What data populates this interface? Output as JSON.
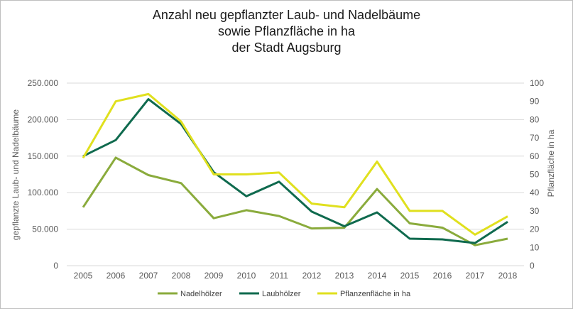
{
  "chart_data": {
    "type": "line",
    "title_lines": [
      "Anzahl neu gepflanzter Laub- und Nadelbäume",
      "sowie Pflanzfläche in ha",
      "der Stadt Augsburg"
    ],
    "categories": [
      "2005",
      "2006",
      "2007",
      "2008",
      "2009",
      "2010",
      "2011",
      "2012",
      "2013",
      "2014",
      "2015",
      "2016",
      "2017",
      "2018"
    ],
    "ylabel_left": "gepflanzte Laub- und Nadelbäume",
    "ylabel_right": "Pflanzfläche in ha",
    "ylim_left": [
      0,
      250000
    ],
    "ylim_right": [
      0,
      100
    ],
    "yticks_left": [
      "0",
      "50.000",
      "100.000",
      "150.000",
      "200.000",
      "250.000"
    ],
    "yticks_right": [
      "0",
      "10",
      "20",
      "30",
      "40",
      "50",
      "60",
      "70",
      "80",
      "90",
      "100"
    ],
    "grid": true,
    "legend_position": "bottom",
    "series": [
      {
        "name": "Nadelhölzer",
        "axis": "left",
        "color": "#8aab3c",
        "values": [
          80000,
          148000,
          124000,
          113000,
          65000,
          76000,
          68000,
          51000,
          52000,
          105000,
          58000,
          52000,
          28000,
          37000
        ]
      },
      {
        "name": "Laubhölzer",
        "axis": "left",
        "color": "#0f6a4e",
        "values": [
          150000,
          172000,
          228000,
          194000,
          128000,
          95000,
          115000,
          74000,
          54000,
          73000,
          37000,
          36000,
          31000,
          60000
        ]
      },
      {
        "name": "Pflanzenfläche in ha",
        "axis": "right",
        "color": "#e0e01e",
        "values": [
          59,
          90,
          94,
          79,
          50,
          50,
          51,
          34,
          32,
          57,
          30,
          30,
          17,
          27
        ]
      }
    ]
  }
}
